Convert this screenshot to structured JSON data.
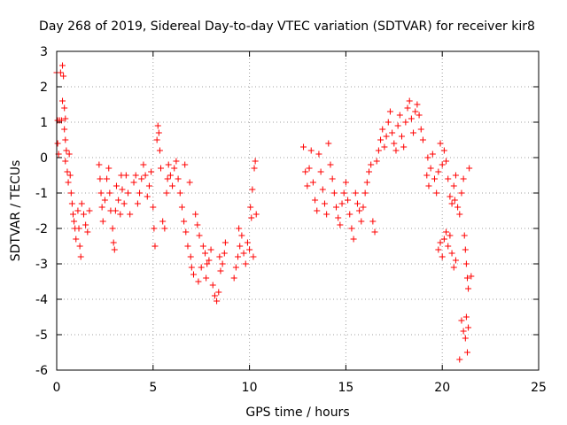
{
  "chart_data": {
    "type": "scatter",
    "title": "Day 268 of 2019, Sidereal Day-to-day VTEC variation (SDTVAR) for receiver kir8",
    "xlabel": "GPS time / hours",
    "ylabel": "SDTVAR / TECUs",
    "xlim": [
      0,
      25
    ],
    "ylim": [
      -6,
      3
    ],
    "xticks": [
      "0",
      "5",
      "10",
      "15",
      "20",
      "25"
    ],
    "yticks": [
      "-6",
      "-5",
      "-4",
      "-3",
      "-2",
      "-1",
      "0",
      "1",
      "2",
      "3"
    ],
    "grid": true,
    "marker": "+",
    "color": "#ff0000",
    "series": [
      {
        "name": "SDTVAR",
        "points": [
          [
            0.0,
            2.4
          ],
          [
            0.05,
            1.05
          ],
          [
            0.05,
            0.4
          ],
          [
            0.1,
            0.1
          ],
          [
            0.15,
            1.05
          ],
          [
            0.2,
            2.4
          ],
          [
            0.25,
            1.05
          ],
          [
            0.3,
            2.6
          ],
          [
            0.35,
            2.3
          ],
          [
            0.3,
            1.6
          ],
          [
            0.4,
            1.4
          ],
          [
            0.45,
            1.1
          ],
          [
            0.4,
            0.8
          ],
          [
            0.45,
            0.5
          ],
          [
            0.5,
            0.2
          ],
          [
            0.45,
            -0.1
          ],
          [
            0.55,
            -0.4
          ],
          [
            0.6,
            -0.7
          ],
          [
            0.65,
            0.1
          ],
          [
            0.7,
            -0.5
          ],
          [
            0.75,
            -1.0
          ],
          [
            0.8,
            -1.3
          ],
          [
            0.85,
            -1.6
          ],
          [
            0.9,
            -1.8
          ],
          [
            0.95,
            -2.0
          ],
          [
            1.0,
            -2.3
          ],
          [
            1.1,
            -1.5
          ],
          [
            1.15,
            -2.0
          ],
          [
            1.2,
            -2.5
          ],
          [
            1.25,
            -2.8
          ],
          [
            1.3,
            -1.3
          ],
          [
            1.4,
            -1.6
          ],
          [
            1.5,
            -1.9
          ],
          [
            1.6,
            -2.1
          ],
          [
            1.7,
            -1.5
          ],
          [
            2.2,
            -0.2
          ],
          [
            2.25,
            -0.6
          ],
          [
            2.3,
            -1.0
          ],
          [
            2.35,
            -1.4
          ],
          [
            2.4,
            -1.8
          ],
          [
            2.5,
            -1.2
          ],
          [
            2.6,
            -0.6
          ],
          [
            2.7,
            -0.3
          ],
          [
            2.75,
            -1.0
          ],
          [
            2.8,
            -1.5
          ],
          [
            2.9,
            -2.0
          ],
          [
            2.95,
            -2.4
          ],
          [
            3.0,
            -2.6
          ],
          [
            3.05,
            -1.5
          ],
          [
            3.1,
            -0.8
          ],
          [
            3.2,
            -1.2
          ],
          [
            3.3,
            -1.6
          ],
          [
            3.35,
            -0.5
          ],
          [
            3.4,
            -0.9
          ],
          [
            3.5,
            -1.3
          ],
          [
            3.6,
            -0.5
          ],
          [
            3.7,
            -1.0
          ],
          [
            3.8,
            -1.6
          ],
          [
            4.0,
            -0.7
          ],
          [
            4.1,
            -0.5
          ],
          [
            4.2,
            -1.3
          ],
          [
            4.3,
            -1.0
          ],
          [
            4.4,
            -0.6
          ],
          [
            4.5,
            -0.2
          ],
          [
            4.6,
            -0.5
          ],
          [
            4.7,
            -1.1
          ],
          [
            4.8,
            -0.8
          ],
          [
            4.9,
            -0.4
          ],
          [
            5.0,
            -1.4
          ],
          [
            5.05,
            -2.0
          ],
          [
            5.1,
            -2.5
          ],
          [
            5.2,
            0.5
          ],
          [
            5.25,
            0.9
          ],
          [
            5.3,
            0.7
          ],
          [
            5.35,
            0.2
          ],
          [
            5.4,
            -0.3
          ],
          [
            5.5,
            -1.8
          ],
          [
            5.6,
            -2.0
          ],
          [
            5.7,
            -1.0
          ],
          [
            5.75,
            -0.6
          ],
          [
            5.8,
            -0.2
          ],
          [
            5.9,
            -0.5
          ],
          [
            6.0,
            -0.8
          ],
          [
            6.1,
            -0.3
          ],
          [
            6.2,
            -0.1
          ],
          [
            6.3,
            -0.6
          ],
          [
            6.4,
            -1.0
          ],
          [
            6.5,
            -1.4
          ],
          [
            6.6,
            -1.8
          ],
          [
            6.65,
            -0.2
          ],
          [
            6.7,
            -2.1
          ],
          [
            6.8,
            -2.5
          ],
          [
            6.9,
            -0.7
          ],
          [
            6.95,
            -2.8
          ],
          [
            7.0,
            -3.1
          ],
          [
            7.1,
            -3.3
          ],
          [
            7.2,
            -1.6
          ],
          [
            7.3,
            -1.9
          ],
          [
            7.35,
            -3.5
          ],
          [
            7.4,
            -2.2
          ],
          [
            7.5,
            -3.1
          ],
          [
            7.6,
            -2.5
          ],
          [
            7.7,
            -2.7
          ],
          [
            7.75,
            -3.4
          ],
          [
            7.8,
            -3.0
          ],
          [
            7.9,
            -2.9
          ],
          [
            8.0,
            -2.6
          ],
          [
            8.1,
            -3.6
          ],
          [
            8.2,
            -3.9
          ],
          [
            8.3,
            -4.05
          ],
          [
            8.4,
            -3.8
          ],
          [
            8.45,
            -2.8
          ],
          [
            8.5,
            -3.2
          ],
          [
            8.6,
            -3.0
          ],
          [
            8.7,
            -2.7
          ],
          [
            8.75,
            -2.4
          ],
          [
            9.2,
            -3.4
          ],
          [
            9.3,
            -3.1
          ],
          [
            9.4,
            -2.8
          ],
          [
            9.45,
            -2.0
          ],
          [
            9.5,
            -2.5
          ],
          [
            9.6,
            -2.2
          ],
          [
            9.7,
            -2.7
          ],
          [
            9.8,
            -3.0
          ],
          [
            9.9,
            -2.4
          ],
          [
            10.0,
            -2.6
          ],
          [
            10.05,
            -1.4
          ],
          [
            10.1,
            -1.7
          ],
          [
            10.15,
            -0.9
          ],
          [
            10.2,
            -2.8
          ],
          [
            10.25,
            -0.3
          ],
          [
            10.3,
            -0.1
          ],
          [
            10.35,
            -1.6
          ],
          [
            12.8,
            0.3
          ],
          [
            12.9,
            -0.4
          ],
          [
            13.0,
            -0.8
          ],
          [
            13.1,
            -0.3
          ],
          [
            13.2,
            0.2
          ],
          [
            13.3,
            -0.7
          ],
          [
            13.4,
            -1.2
          ],
          [
            13.5,
            -1.5
          ],
          [
            13.6,
            0.1
          ],
          [
            13.7,
            -0.4
          ],
          [
            13.8,
            -0.9
          ],
          [
            13.9,
            -1.3
          ],
          [
            14.0,
            -1.6
          ],
          [
            14.1,
            0.4
          ],
          [
            14.2,
            -0.2
          ],
          [
            14.3,
            -0.6
          ],
          [
            14.4,
            -1.0
          ],
          [
            14.5,
            -1.4
          ],
          [
            14.6,
            -1.7
          ],
          [
            14.7,
            -1.9
          ],
          [
            14.8,
            -1.3
          ],
          [
            14.9,
            -1.0
          ],
          [
            15.0,
            -0.7
          ],
          [
            15.1,
            -1.2
          ],
          [
            15.2,
            -1.6
          ],
          [
            15.3,
            -2.0
          ],
          [
            15.4,
            -2.3
          ],
          [
            15.5,
            -1.0
          ],
          [
            15.6,
            -1.3
          ],
          [
            15.7,
            -1.5
          ],
          [
            15.8,
            -1.8
          ],
          [
            15.9,
            -1.4
          ],
          [
            16.0,
            -1.0
          ],
          [
            16.1,
            -0.7
          ],
          [
            16.2,
            -0.4
          ],
          [
            16.3,
            -0.2
          ],
          [
            16.4,
            -1.8
          ],
          [
            16.5,
            -2.1
          ],
          [
            16.6,
            -0.1
          ],
          [
            16.7,
            0.2
          ],
          [
            16.8,
            0.5
          ],
          [
            16.9,
            0.8
          ],
          [
            17.0,
            0.3
          ],
          [
            17.1,
            0.6
          ],
          [
            17.2,
            1.0
          ],
          [
            17.3,
            1.3
          ],
          [
            17.4,
            0.7
          ],
          [
            17.5,
            0.4
          ],
          [
            17.6,
            0.2
          ],
          [
            17.7,
            0.9
          ],
          [
            17.8,
            1.2
          ],
          [
            17.9,
            0.6
          ],
          [
            18.0,
            0.3
          ],
          [
            18.1,
            1.0
          ],
          [
            18.2,
            1.4
          ],
          [
            18.3,
            1.6
          ],
          [
            18.4,
            1.1
          ],
          [
            18.5,
            0.7
          ],
          [
            18.6,
            1.3
          ],
          [
            18.7,
            1.5
          ],
          [
            18.8,
            1.2
          ],
          [
            18.9,
            0.8
          ],
          [
            19.0,
            0.5
          ],
          [
            19.2,
            -0.5
          ],
          [
            19.25,
            0.0
          ],
          [
            19.3,
            -0.8
          ],
          [
            19.4,
            -0.3
          ],
          [
            19.5,
            0.1
          ],
          [
            19.6,
            -0.6
          ],
          [
            19.7,
            -1.0
          ],
          [
            19.8,
            -0.4
          ],
          [
            19.9,
            0.4
          ],
          [
            20.0,
            -0.2
          ],
          [
            20.1,
            0.2
          ],
          [
            20.2,
            -0.1
          ],
          [
            20.3,
            -0.6
          ],
          [
            20.4,
            -1.1
          ],
          [
            20.5,
            -1.3
          ],
          [
            20.6,
            -0.8
          ],
          [
            20.65,
            -1.2
          ],
          [
            20.7,
            -0.5
          ],
          [
            20.8,
            -1.4
          ],
          [
            20.9,
            -1.6
          ],
          [
            21.0,
            -1.0
          ],
          [
            21.1,
            -0.6
          ],
          [
            21.15,
            -2.2
          ],
          [
            21.2,
            -2.6
          ],
          [
            21.25,
            -3.0
          ],
          [
            21.3,
            -3.4
          ],
          [
            21.35,
            -3.7
          ],
          [
            21.4,
            -0.3
          ],
          [
            21.5,
            -3.35
          ],
          [
            19.8,
            -2.6
          ],
          [
            19.9,
            -2.4
          ],
          [
            20.0,
            -2.8
          ],
          [
            20.1,
            -2.3
          ],
          [
            20.2,
            -2.1
          ],
          [
            20.3,
            -2.5
          ],
          [
            20.4,
            -2.2
          ],
          [
            20.5,
            -2.7
          ],
          [
            20.6,
            -3.1
          ],
          [
            20.7,
            -2.9
          ],
          [
            20.9,
            -5.7
          ],
          [
            21.0,
            -4.6
          ],
          [
            21.1,
            -4.9
          ],
          [
            21.2,
            -5.1
          ],
          [
            21.25,
            -4.5
          ],
          [
            21.3,
            -5.5
          ],
          [
            21.35,
            -4.8
          ]
        ]
      }
    ]
  }
}
